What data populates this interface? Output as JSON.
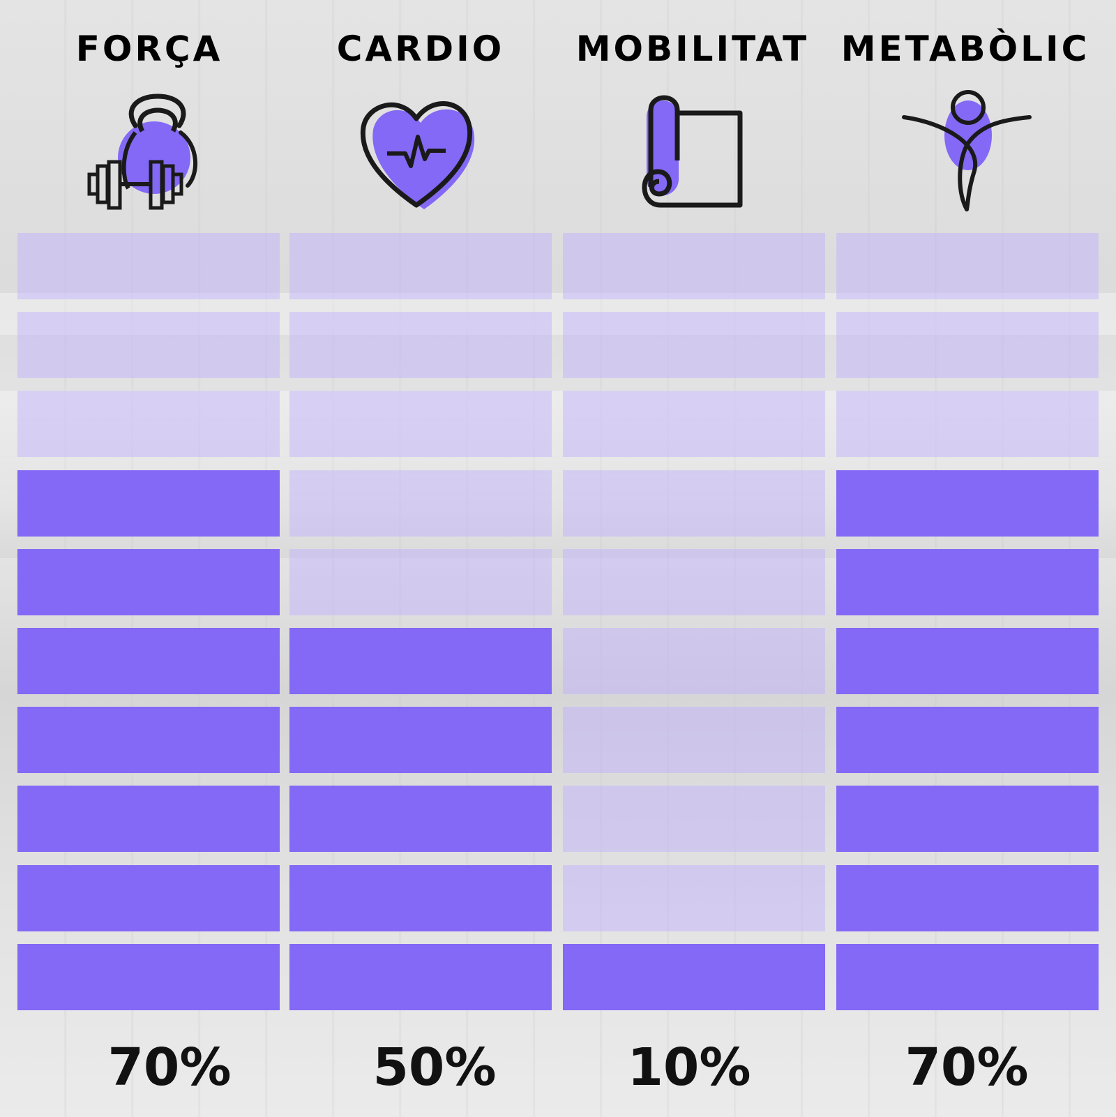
{
  "colors": {
    "filled": "#8468f6",
    "empty": "rgba(190, 176, 255, 0.45)",
    "outline": "#1a1a1a",
    "text": "#000000"
  },
  "chart_data": {
    "type": "bar",
    "orientation": "vertical-stacked-segments",
    "segments_total": 10,
    "categories": [
      "FORÇA",
      "CARDIO",
      "MOBILITAT",
      "METABÒLIC"
    ],
    "values": [
      70,
      50,
      10,
      70
    ],
    "value_labels": [
      "70%",
      "50%",
      "10%",
      "70%"
    ],
    "icons": [
      "kettlebell-dumbbell-icon",
      "heart-pulse-icon",
      "yoga-mat-icon",
      "person-stretch-icon"
    ],
    "title": "",
    "ylim": [
      0,
      100
    ],
    "grid": false,
    "legend": "none"
  }
}
